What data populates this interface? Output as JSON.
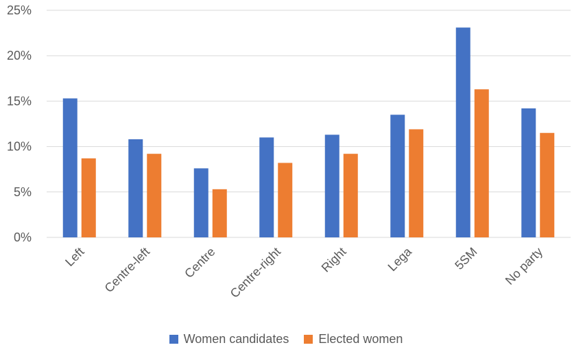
{
  "chart_data": {
    "type": "bar",
    "categories": [
      "Left",
      "Centre-left",
      "Centre",
      "Centre-right",
      "Right",
      "Lega",
      "5SM",
      "No party"
    ],
    "series": [
      {
        "name": "Women candidates",
        "color": "#4472C4",
        "values": [
          15.3,
          10.8,
          7.6,
          11.0,
          11.3,
          13.5,
          23.1,
          14.2
        ]
      },
      {
        "name": "Elected women",
        "color": "#ED7D31",
        "values": [
          8.7,
          9.2,
          5.3,
          8.2,
          9.2,
          11.9,
          16.3,
          11.5
        ]
      }
    ],
    "yticks": [
      "0%",
      "5%",
      "10%",
      "15%",
      "20%",
      "25%"
    ],
    "ytick_values": [
      0,
      5,
      10,
      15,
      20,
      25
    ],
    "ylim": [
      0,
      25
    ],
    "grid": true,
    "legend": "bottom",
    "gridline_color": "#D9D9D9"
  }
}
